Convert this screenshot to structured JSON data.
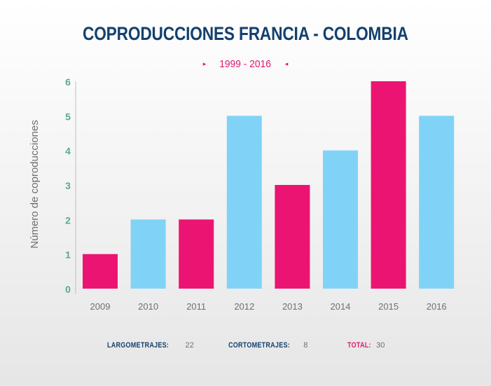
{
  "chart_data": {
    "type": "bar",
    "title": "COPRODUCCIONES FRANCIA - COLOMBIA",
    "subtitle": "1999 - 2016",
    "ylabel": "Número de coproducciones",
    "xlabel": "",
    "categories": [
      "2009",
      "2010",
      "2011",
      "2012",
      "2013",
      "2014",
      "2015",
      "2016"
    ],
    "values": [
      1,
      2,
      2,
      5,
      3,
      4,
      6,
      5
    ],
    "bar_colors": [
      "#ec1472",
      "#80d3f7",
      "#ec1472",
      "#80d3f7",
      "#ec1472",
      "#80d3f7",
      "#ec1472",
      "#80d3f7"
    ],
    "ylim": [
      0,
      6
    ],
    "yticks": [
      "0",
      "1",
      "2",
      "3",
      "4",
      "5",
      "6"
    ],
    "grid": false,
    "legend": "none"
  },
  "colors": {
    "title": "#13406e",
    "accent": "#e0176f",
    "ytick": "#5aa98a",
    "xtick": "#6f6f6f",
    "bar_pink": "#ec1472",
    "bar_blue": "#80d3f7"
  },
  "subtitle_markers": {
    "left": "▸",
    "right": "◂"
  },
  "footer": {
    "largometrajes_label": "LARGOMETRAJES:",
    "largometrajes_value": "22",
    "cortometrajes_label": "CORTOMETRAJES:",
    "cortometrajes_value": "8",
    "total_label": "TOTAL:",
    "total_value": "30"
  }
}
